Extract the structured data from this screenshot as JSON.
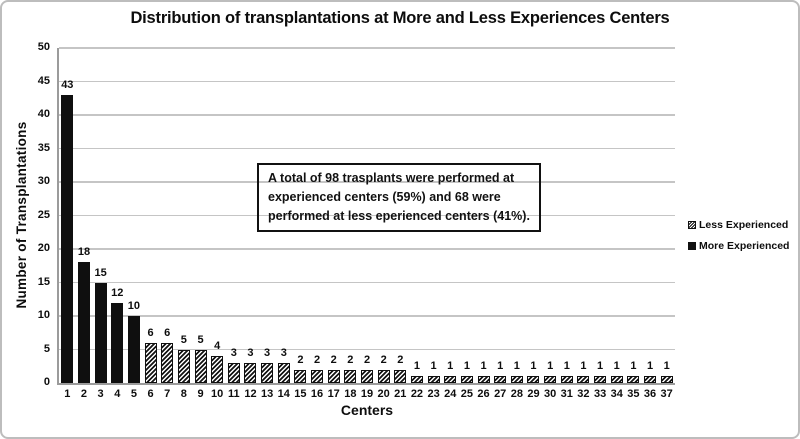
{
  "chart_data": {
    "type": "bar",
    "title": "Distribution of transplantations at More and Less Experiences Centers",
    "xlabel": "Centers",
    "ylabel": "Number of Transplantations",
    "ylim": [
      0,
      50
    ],
    "yticks": [
      0,
      5,
      10,
      15,
      20,
      25,
      30,
      35,
      40,
      45,
      50
    ],
    "grid": true,
    "categories": [
      "1",
      "2",
      "3",
      "4",
      "5",
      "6",
      "7",
      "8",
      "9",
      "10",
      "11",
      "12",
      "13",
      "14",
      "15",
      "16",
      "17",
      "18",
      "19",
      "20",
      "21",
      "22",
      "23",
      "24",
      "25",
      "26",
      "27",
      "28",
      "29",
      "30",
      "31",
      "32",
      "33",
      "34",
      "35",
      "36",
      "37"
    ],
    "values": [
      43,
      18,
      15,
      12,
      10,
      6,
      6,
      5,
      5,
      4,
      3,
      3,
      3,
      3,
      2,
      2,
      2,
      2,
      2,
      2,
      2,
      1,
      1,
      1,
      1,
      1,
      1,
      1,
      1,
      1,
      1,
      1,
      1,
      1,
      1,
      1,
      1
    ],
    "groups": [
      "more",
      "more",
      "more",
      "more",
      "more",
      "less",
      "less",
      "less",
      "less",
      "less",
      "less",
      "less",
      "less",
      "less",
      "less",
      "less",
      "less",
      "less",
      "less",
      "less",
      "less",
      "less",
      "less",
      "less",
      "less",
      "less",
      "less",
      "less",
      "less",
      "less",
      "less",
      "less",
      "less",
      "less",
      "less",
      "less",
      "less"
    ],
    "series": [
      {
        "name": "More Experienced",
        "key": "more",
        "style": "solid",
        "total": 98
      },
      {
        "name": "Less Experienced",
        "key": "less",
        "style": "hatched",
        "total": 68
      }
    ],
    "legend": [
      {
        "label": "Less Experienced",
        "style": "hatched"
      },
      {
        "label": "More Experienced",
        "style": "solid"
      }
    ],
    "legend_position": "right",
    "annotation_lines": [
      "A total of 98 trasplants were performed at",
      "experienced centers (59%) and 68 were",
      "performed at less eperienced centers (41%)."
    ],
    "colors": {
      "bar": "#111111",
      "grid": "#c5c5c5",
      "axis": "#9b9b9b",
      "frame_border": "#bdbdbd"
    }
  }
}
